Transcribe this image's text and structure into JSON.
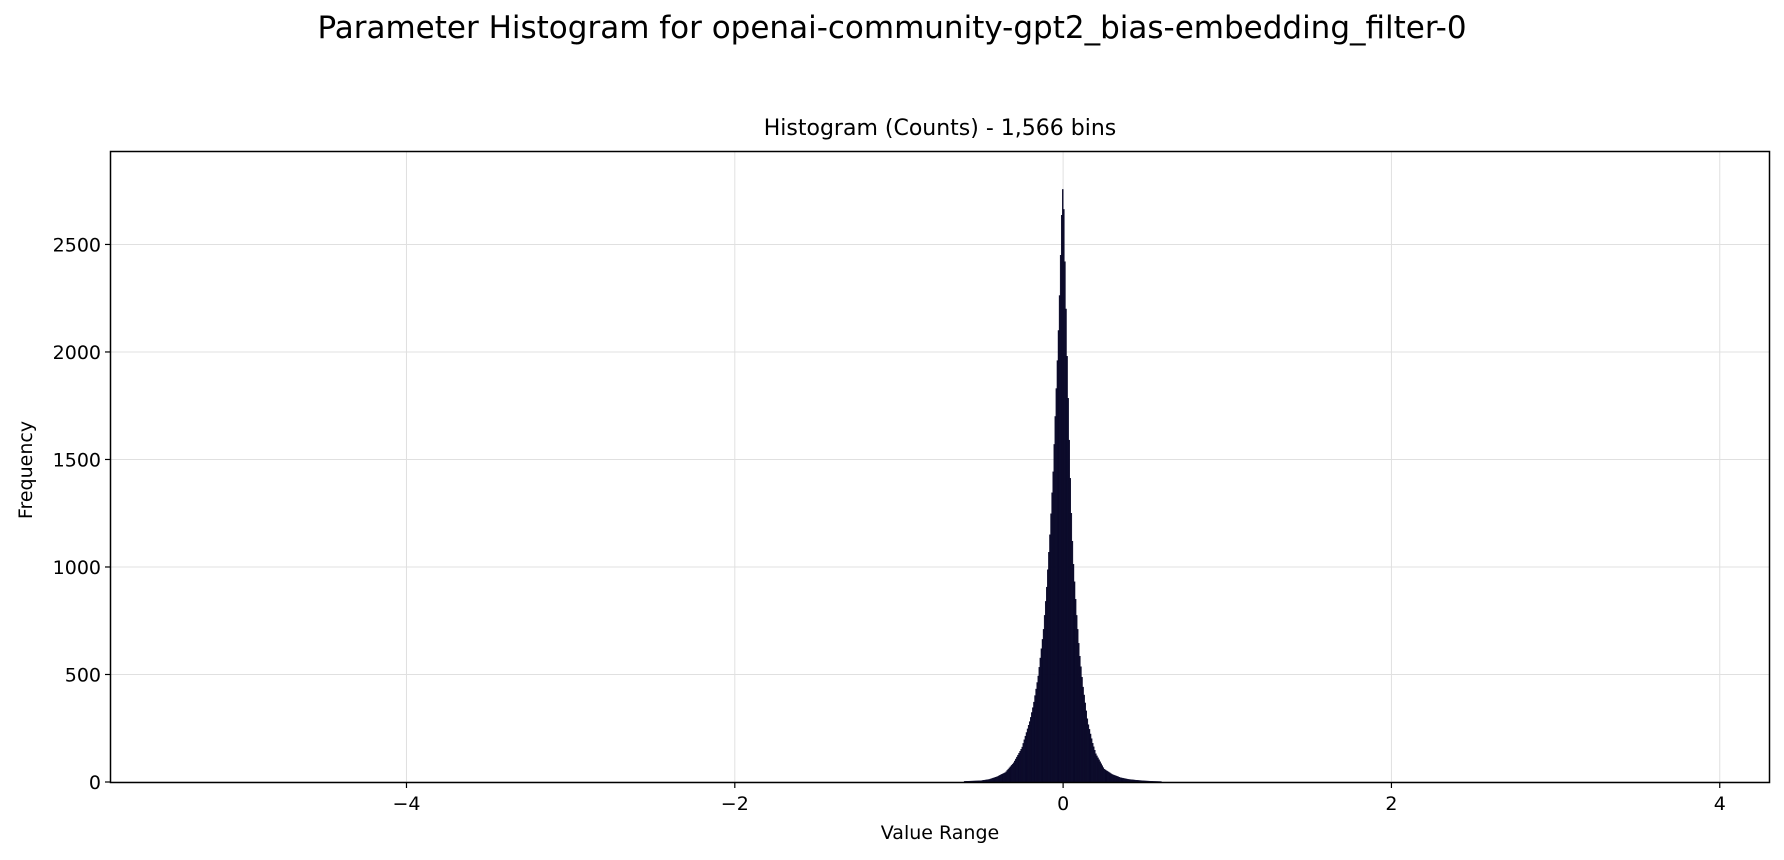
{
  "chart_data": {
    "type": "bar",
    "title": "Parameter Histogram for openai-community-gpt2_bias-embedding_filter-0",
    "subtitle": "Histogram (Counts) - 1,566 bins",
    "xlabel": "Value Range",
    "ylabel": "Frequency",
    "xlim": [
      -5.8,
      4.3
    ],
    "ylim": [
      0,
      2930
    ],
    "x_ticks": [
      -4,
      -2,
      0,
      2,
      4
    ],
    "x_tick_labels": [
      "−4",
      "−2",
      "0",
      "2",
      "4"
    ],
    "y_ticks": [
      0,
      500,
      1000,
      1500,
      2000,
      2500
    ],
    "y_tick_labels": [
      "0",
      "500",
      "1000",
      "1500",
      "2000",
      "2500"
    ],
    "grid": true,
    "bar_color": "#0b0a2a",
    "series": [
      {
        "x": [
          -0.6,
          -0.5,
          -0.45,
          -0.4,
          -0.35,
          -0.3,
          -0.25,
          -0.2,
          -0.18,
          -0.15,
          -0.12,
          -0.1,
          -0.08,
          -0.06,
          -0.05,
          -0.04,
          -0.03,
          -0.02,
          -0.015,
          -0.01,
          -0.005,
          0.0,
          0.005,
          0.01,
          0.015,
          0.02,
          0.03,
          0.04,
          0.05,
          0.06,
          0.08,
          0.1,
          0.12,
          0.15,
          0.18,
          0.2,
          0.25,
          0.3,
          0.35,
          0.4,
          0.45,
          0.5,
          0.55,
          0.6
        ],
        "values": [
          3,
          6,
          12,
          25,
          45,
          90,
          160,
          290,
          360,
          500,
          700,
          900,
          1150,
          1450,
          1650,
          1850,
          2050,
          2300,
          2450,
          2600,
          2720,
          2780,
          2650,
          2450,
          2300,
          2100,
          1800,
          1500,
          1250,
          1050,
          800,
          600,
          450,
          280,
          180,
          130,
          60,
          35,
          20,
          12,
          8,
          5,
          3,
          2
        ]
      }
    ]
  }
}
